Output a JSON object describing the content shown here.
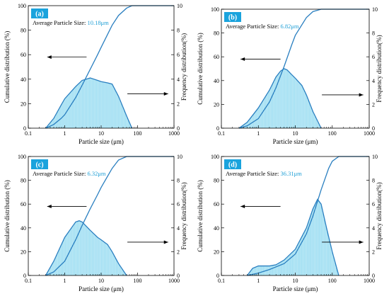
{
  "colors": {
    "line": "#2a7fc0",
    "fill": "#4fc3e8",
    "accent": "#1f9fd6",
    "label_bg": "#1aa3dd"
  },
  "chart_data": [
    {
      "type": "area",
      "panel": "(a)",
      "avg_label": "Average Particle Size:",
      "avg_value": "10.18μm",
      "xlabel": "Particle size (μm)",
      "ylabel_left": "Cumulative distribution (%)",
      "ylabel_right": "Frequency distribution(%)",
      "x_ticks": [
        "0.1",
        "1",
        "10",
        "100",
        "1000"
      ],
      "yl_ticks": [
        "0",
        "20",
        "40",
        "60",
        "80",
        "100"
      ],
      "yr_ticks": [
        "0",
        "2",
        "4",
        "6",
        "8",
        "10"
      ],
      "xlim": [
        0.1,
        1000
      ],
      "yl_lim": [
        0,
        100
      ],
      "yr_lim": [
        0,
        10
      ],
      "xscale": "log",
      "legend": "none",
      "grid": false,
      "cumulative": [
        [
          0.3,
          0
        ],
        [
          0.5,
          3
        ],
        [
          0.8,
          8
        ],
        [
          1,
          11
        ],
        [
          2,
          25
        ],
        [
          3,
          35
        ],
        [
          5,
          48
        ],
        [
          8,
          60
        ],
        [
          10,
          66
        ],
        [
          20,
          84
        ],
        [
          30,
          92
        ],
        [
          50,
          98
        ],
        [
          70,
          100
        ],
        [
          1000,
          100
        ]
      ],
      "frequency": [
        [
          0.3,
          0
        ],
        [
          0.5,
          0.8
        ],
        [
          0.8,
          1.9
        ],
        [
          1,
          2.4
        ],
        [
          2,
          3.4
        ],
        [
          3,
          3.9
        ],
        [
          5,
          4.1
        ],
        [
          8,
          3.9
        ],
        [
          10,
          3.8
        ],
        [
          15,
          3.7
        ],
        [
          20,
          3.6
        ],
        [
          30,
          2.6
        ],
        [
          50,
          1
        ],
        [
          70,
          0
        ]
      ]
    },
    {
      "type": "area",
      "panel": "(b)",
      "avg_label": "Average Particle Size:",
      "avg_value": "6.82μm",
      "xlabel": "Particle size (μm)",
      "ylabel_left": "Cumulative distribution (%)",
      "ylabel_right": "Frequency distribution(%)",
      "x_ticks": [
        "0.1",
        "1",
        "10",
        "100",
        "1000"
      ],
      "yl_ticks": [
        "0",
        "20",
        "40",
        "60",
        "80",
        "100"
      ],
      "yr_ticks": [
        "0",
        "2",
        "4",
        "6",
        "8",
        "10"
      ],
      "xlim": [
        0.1,
        1000
      ],
      "yl_lim": [
        0,
        100
      ],
      "yr_lim": [
        0,
        10
      ],
      "xscale": "log",
      "legend": "none",
      "grid": false,
      "cumulative": [
        [
          0.3,
          0
        ],
        [
          0.5,
          2
        ],
        [
          1,
          8
        ],
        [
          2,
          22
        ],
        [
          3,
          34
        ],
        [
          5,
          52
        ],
        [
          8,
          70
        ],
        [
          10,
          78
        ],
        [
          20,
          93
        ],
        [
          30,
          98
        ],
        [
          50,
          100
        ],
        [
          1000,
          100
        ]
      ],
      "frequency": [
        [
          0.3,
          0
        ],
        [
          0.5,
          0.5
        ],
        [
          1,
          1.7
        ],
        [
          2,
          3.2
        ],
        [
          3,
          4.3
        ],
        [
          4,
          4.8
        ],
        [
          5,
          5
        ],
        [
          6,
          4.9
        ],
        [
          8,
          4.5
        ],
        [
          10,
          4.2
        ],
        [
          15,
          3.6
        ],
        [
          20,
          2.8
        ],
        [
          30,
          1.4
        ],
        [
          50,
          0
        ]
      ]
    },
    {
      "type": "area",
      "panel": "(c)",
      "avg_label": "Average Particle Size:",
      "avg_value": "6.32μm",
      "xlabel": "Particle size (μm)",
      "ylabel_left": "Cumulative distribution (%)",
      "ylabel_right": "Frequency distribution(%)",
      "x_ticks": [
        "0.1",
        "1",
        "10",
        "100",
        "1000"
      ],
      "yl_ticks": [
        "0",
        "20",
        "40",
        "60",
        "80",
        "100"
      ],
      "yr_ticks": [
        "0",
        "2",
        "4",
        "6",
        "8",
        "10"
      ],
      "xlim": [
        0.1,
        1000
      ],
      "yl_lim": [
        0,
        100
      ],
      "yr_lim": [
        0,
        10
      ],
      "xscale": "log",
      "legend": "none",
      "grid": false,
      "cumulative": [
        [
          0.3,
          0
        ],
        [
          0.5,
          3
        ],
        [
          1,
          12
        ],
        [
          2,
          30
        ],
        [
          3,
          42
        ],
        [
          5,
          56
        ],
        [
          8,
          68
        ],
        [
          10,
          74
        ],
        [
          20,
          90
        ],
        [
          30,
          97
        ],
        [
          50,
          100
        ],
        [
          1000,
          100
        ]
      ],
      "frequency": [
        [
          0.3,
          0
        ],
        [
          0.5,
          1.2
        ],
        [
          1,
          3.2
        ],
        [
          2,
          4.5
        ],
        [
          2.5,
          4.6
        ],
        [
          3,
          4.5
        ],
        [
          5,
          3.8
        ],
        [
          8,
          3.2
        ],
        [
          10,
          3
        ],
        [
          15,
          2.6
        ],
        [
          20,
          2
        ],
        [
          30,
          1
        ],
        [
          50,
          0
        ]
      ]
    },
    {
      "type": "area",
      "panel": "(d)",
      "avg_label": "Average Particle Size:",
      "avg_value": "36.31μm",
      "xlabel": "Particle size (μm)",
      "ylabel_left": "Cumulative distribution (%)",
      "ylabel_right": "Frequency distribution(%)",
      "x_ticks": [
        "0.1",
        "1",
        "10",
        "100",
        "1000"
      ],
      "yl_ticks": [
        "0",
        "20",
        "40",
        "60",
        "80",
        "100"
      ],
      "yr_ticks": [
        "0",
        "2",
        "4",
        "6",
        "8",
        "10"
      ],
      "xlim": [
        0.1,
        1000
      ],
      "yl_lim": [
        0,
        100
      ],
      "yr_lim": [
        0,
        10
      ],
      "xscale": "log",
      "legend": "none",
      "grid": false,
      "cumulative": [
        [
          0.5,
          0
        ],
        [
          1,
          2
        ],
        [
          2,
          5
        ],
        [
          5,
          10
        ],
        [
          10,
          18
        ],
        [
          20,
          35
        ],
        [
          30,
          50
        ],
        [
          50,
          72
        ],
        [
          80,
          90
        ],
        [
          100,
          96
        ],
        [
          150,
          100
        ],
        [
          1000,
          100
        ]
      ],
      "frequency": [
        [
          0.5,
          0
        ],
        [
          0.7,
          0.6
        ],
        [
          1,
          0.8
        ],
        [
          2,
          0.8
        ],
        [
          3,
          0.9
        ],
        [
          5,
          1.3
        ],
        [
          10,
          2.2
        ],
        [
          20,
          4
        ],
        [
          30,
          5.6
        ],
        [
          40,
          6.4
        ],
        [
          50,
          6
        ],
        [
          70,
          4
        ],
        [
          100,
          2
        ],
        [
          150,
          0
        ]
      ]
    }
  ]
}
